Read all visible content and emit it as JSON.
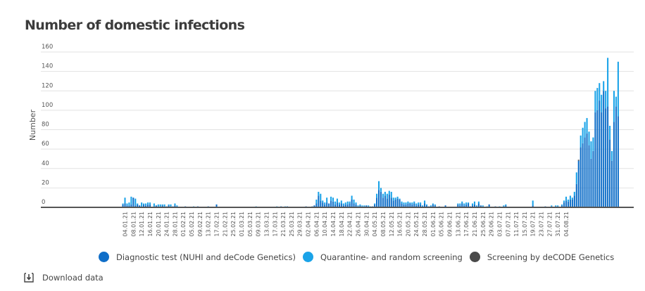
{
  "page": {
    "title": "Number of domestic infections",
    "download_label": "Download data",
    "download_icon": "download-icon"
  },
  "colors": {
    "diagnostic": "#0f6ec8",
    "quarantine": "#1aa3e8",
    "decode": "#4a4a4a",
    "grid": "#e2e2e2",
    "axis": "#555555",
    "text": "#444444"
  },
  "chart_data": {
    "type": "bar",
    "stacked": true,
    "title": "Number of domestic infections",
    "xlabel": "",
    "ylabel": "Number",
    "ylim": [
      0,
      160
    ],
    "yticks": [
      0,
      20,
      40,
      60,
      80,
      100,
      120,
      140,
      160
    ],
    "grid": true,
    "legend_position": "bottom",
    "x_start": "2021-01-01",
    "x_tick_labels": [
      "04.01.21",
      "08.01.21",
      "12.01.21",
      "16.01.21",
      "20.01.21",
      "24.01.21",
      "28.01.21",
      "01.02.21",
      "05.02.21",
      "09.02.21",
      "13.02.21",
      "17.02.21",
      "21.02.21",
      "25.02.21",
      "01.03.21",
      "05.03.21",
      "09.03.21",
      "13.03.21",
      "17.03.21",
      "21.03.21",
      "25.03.21",
      "29.03.21",
      "02.04.21",
      "06.04.21",
      "10.04.21",
      "14.04.21",
      "18.04.21",
      "22.04.21",
      "26.04.21",
      "30.04.21",
      "04.05.21",
      "08.05.21",
      "12.05.21",
      "16.05.21",
      "20.05.21",
      "24.05.21",
      "28.05.21",
      "01.06.21",
      "05.06.21",
      "09.06.21",
      "13.06.21",
      "17.06.21",
      "21.06.21",
      "25.06.21",
      "29.06.21",
      "03.07.21",
      "07.07.21",
      "11.07.21",
      "15.07.21",
      "19.07.21",
      "23.07.21",
      "27.07.21",
      "31.07.21",
      "04.08.21"
    ],
    "series": [
      {
        "name": "Diagnostic test (NUHI and deCode Genetics)",
        "values": [
          0,
          0,
          3,
          4,
          2,
          2,
          3,
          10,
          2,
          3,
          2,
          1,
          3,
          2,
          3,
          3,
          0,
          1,
          2,
          1,
          1,
          2,
          1,
          1,
          2,
          1,
          1,
          2,
          1,
          0,
          0,
          0,
          1,
          0,
          0,
          0,
          0,
          0,
          1,
          0,
          0,
          0,
          0,
          1,
          0,
          0,
          0,
          3,
          0,
          0,
          0,
          0,
          0,
          0,
          0,
          0,
          0,
          0,
          0,
          0,
          0,
          0,
          0,
          0,
          0,
          0,
          0,
          0,
          0,
          0,
          0,
          0,
          0,
          0,
          0,
          0,
          0,
          0,
          1,
          0,
          0,
          1,
          0,
          0,
          0,
          0,
          0,
          0,
          0,
          0,
          1,
          0,
          0,
          1,
          2,
          4,
          12,
          7,
          5,
          3,
          5,
          4,
          7,
          6,
          3,
          5,
          3,
          4,
          2,
          3,
          3,
          4,
          8,
          4,
          3,
          1,
          2,
          1,
          1,
          2,
          1,
          0,
          1,
          3,
          10,
          18,
          16,
          10,
          12,
          9,
          13,
          10,
          7,
          8,
          9,
          8,
          4,
          3,
          3,
          4,
          4,
          3,
          4,
          2,
          3,
          3,
          1,
          4,
          2,
          1,
          1,
          3,
          2,
          0,
          1,
          0,
          0,
          2,
          0,
          0,
          0,
          0,
          0,
          3,
          2,
          4,
          2,
          3,
          4,
          1,
          2,
          3,
          1,
          4,
          2,
          1,
          0,
          0,
          3,
          0,
          0,
          1,
          0,
          0,
          0,
          1,
          2,
          0,
          0,
          0,
          0,
          0,
          0,
          0,
          0,
          0,
          0,
          0,
          0,
          2,
          0,
          0,
          0,
          0,
          0,
          1,
          0,
          0,
          1,
          0,
          1,
          1,
          0,
          2,
          5,
          7,
          6,
          8,
          8,
          12,
          24,
          48,
          62,
          66,
          72,
          76,
          64,
          50,
          58,
          98,
          100,
          110,
          98,
          120,
          102,
          104,
          70,
          48,
          88,
          104,
          94
        ],
        "color": "#0f6ec8"
      },
      {
        "name": "Quarantine- and random screening",
        "values": [
          0,
          0,
          1,
          6,
          2,
          3,
          8,
          0,
          7,
          1,
          0,
          4,
          1,
          2,
          2,
          2,
          0,
          3,
          0,
          2,
          2,
          1,
          2,
          0,
          1,
          2,
          0,
          2,
          1,
          0,
          0,
          0,
          0,
          0,
          0,
          0,
          1,
          0,
          0,
          0,
          0,
          0,
          0,
          0,
          0,
          0,
          0,
          0,
          0,
          0,
          0,
          0,
          0,
          0,
          0,
          0,
          0,
          0,
          0,
          0,
          0,
          0,
          0,
          0,
          0,
          0,
          1,
          0,
          0,
          0,
          0,
          0,
          0,
          0,
          0,
          0,
          1,
          0,
          0,
          0,
          1,
          0,
          0,
          0,
          0,
          0,
          0,
          0,
          0,
          0,
          0,
          0,
          0,
          0,
          0,
          4,
          4,
          7,
          2,
          2,
          5,
          0,
          4,
          4,
          3,
          4,
          2,
          3,
          2,
          2,
          3,
          2,
          4,
          4,
          2,
          1,
          1,
          1,
          1,
          0,
          1,
          1,
          0,
          1,
          4,
          9,
          4,
          4,
          4,
          5,
          4,
          6,
          3,
          2,
          2,
          1,
          2,
          2,
          2,
          2,
          1,
          2,
          2,
          2,
          2,
          2,
          1,
          3,
          1,
          0,
          1,
          1,
          1,
          0,
          0,
          0,
          0,
          0,
          0,
          0,
          0,
          0,
          0,
          1,
          2,
          2,
          2,
          2,
          1,
          0,
          2,
          3,
          1,
          2,
          0,
          1,
          0,
          1,
          0,
          0,
          0,
          0,
          0,
          1,
          0,
          1,
          1,
          0,
          0,
          0,
          0,
          0,
          0,
          0,
          0,
          0,
          0,
          0,
          0,
          5,
          0,
          0,
          0,
          0,
          0,
          0,
          0,
          0,
          1,
          0,
          1,
          1,
          0,
          1,
          2,
          4,
          2,
          4,
          2,
          4,
          12,
          0,
          12,
          16,
          16,
          16,
          14,
          18,
          14,
          22,
          23,
          18,
          18,
          10,
          18,
          50,
          14,
          10,
          32,
          10,
          56
        ],
        "color": "#1aa3e8"
      },
      {
        "name": "Screening by deCODE Genetics",
        "values": [
          0,
          0,
          0,
          0,
          0,
          0,
          0,
          0,
          0,
          0,
          0,
          0,
          0,
          0,
          0,
          0,
          0,
          0,
          0,
          0,
          0,
          0,
          0,
          0,
          0,
          0,
          0,
          0,
          0,
          0,
          0,
          0,
          0,
          0,
          0,
          0,
          0,
          0,
          0,
          0,
          0,
          0,
          0,
          0,
          0,
          0,
          0,
          0,
          0,
          0,
          0,
          0,
          0,
          0,
          0,
          0,
          0,
          0,
          0,
          0,
          0,
          0,
          0,
          0,
          0,
          0,
          0,
          0,
          0,
          0,
          0,
          0,
          0,
          0,
          0,
          0,
          0,
          0,
          0,
          0,
          0,
          0,
          0,
          0,
          0,
          0,
          0,
          0,
          0,
          0,
          0,
          0,
          0,
          0,
          0,
          0,
          0,
          0,
          0,
          0,
          0,
          0,
          0,
          0,
          0,
          0,
          0,
          0,
          0,
          0,
          0,
          0,
          0,
          0,
          0,
          0,
          0,
          0,
          0,
          0,
          0,
          0,
          0,
          0,
          0,
          0,
          0,
          0,
          0,
          0,
          0,
          0,
          0,
          0,
          0,
          0,
          0,
          0,
          0,
          0,
          0,
          0,
          0,
          0,
          0,
          0,
          0,
          0,
          0,
          0,
          0,
          0,
          0,
          0,
          0,
          0,
          0,
          0,
          0,
          0,
          0,
          0,
          0,
          0,
          0,
          0,
          0,
          0,
          0,
          0,
          0,
          0,
          0,
          0,
          0,
          0,
          0,
          0,
          0,
          0,
          0,
          0,
          0,
          0,
          0,
          0,
          0,
          0,
          0,
          0,
          0,
          0,
          0,
          0,
          0,
          0,
          0,
          0,
          0,
          0,
          0,
          0,
          0,
          0,
          0,
          0,
          0,
          0,
          0,
          0,
          0,
          0,
          0,
          0,
          0,
          0,
          0,
          0,
          0,
          0,
          0,
          1,
          0,
          0,
          0,
          0,
          0,
          0,
          0,
          0,
          0,
          0,
          0,
          0,
          0,
          0,
          0,
          0,
          0,
          0,
          0,
          0,
          0,
          0,
          0,
          0,
          0
        ],
        "color": "#4a4a4a"
      }
    ]
  }
}
